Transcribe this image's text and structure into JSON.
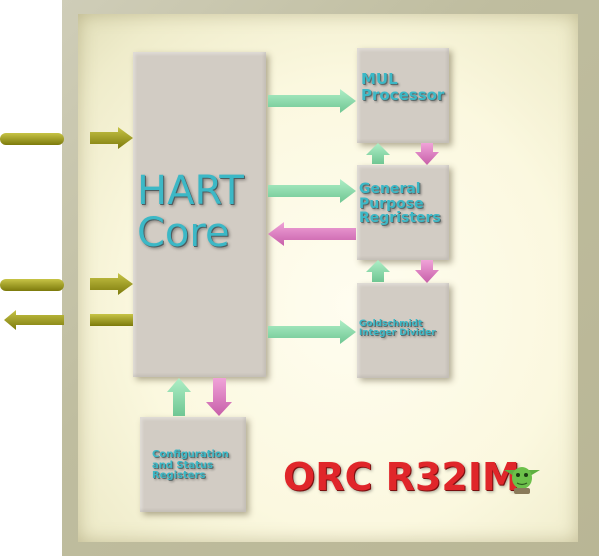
{
  "diagram": {
    "blocks": {
      "hart_core": "HART\nCore",
      "mul": "MUL\nProcessor",
      "gpr": "General\nPurpose\nRegristers",
      "div": "Goldschmidt\nInteger Divider",
      "csr": "Configuration\nand Status\nRegisters"
    },
    "brand": "ORC R32IM",
    "mascot": "yoda-mascot-icon",
    "colors": {
      "block": "#d2ccc4",
      "label": "#3cb8c6",
      "arrow_green": "#8fd9ad",
      "arrow_pink": "#e27fc4",
      "arrow_olive": "#a6a318",
      "brand": "#e0262a"
    }
  }
}
